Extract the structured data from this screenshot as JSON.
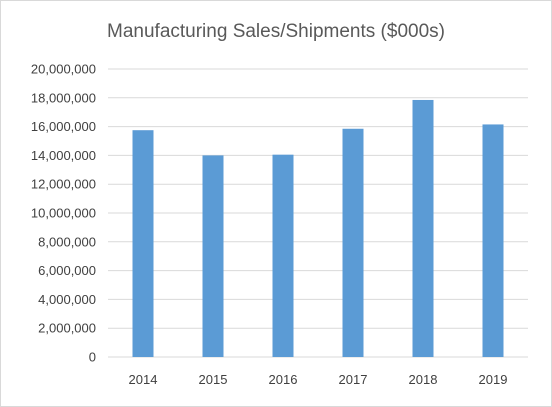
{
  "chart_data": {
    "type": "bar",
    "title": "Manufacturing Sales/Shipments ($000s)",
    "xlabel": "",
    "ylabel": "",
    "categories": [
      "2014",
      "2015",
      "2016",
      "2017",
      "2018",
      "2019"
    ],
    "series": [
      {
        "values": [
          15750000,
          14000000,
          14050000,
          15850000,
          17850000,
          16150000
        ]
      }
    ],
    "ylim": [
      0,
      20000000
    ],
    "yticks": [
      "0",
      "2,000,000",
      "4,000,000",
      "6,000,000",
      "8,000,000",
      "10,000,000",
      "12,000,000",
      "14,000,000",
      "16,000,000",
      "18,000,000",
      "20,000,000"
    ],
    "grid": true,
    "legend": "none",
    "bar_color": "#5b9bd5",
    "grid_color": "#d9d9d9"
  }
}
